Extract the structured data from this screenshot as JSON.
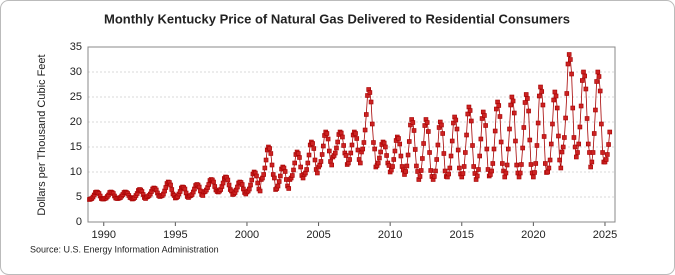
{
  "chart_data": {
    "type": "line",
    "title": "Monthly Kentucky Price of Natural Gas Delivered to Residential Consumers",
    "y_label": "Dollars per Thousand Cubic Feet",
    "source": "Source: U.S. Energy Information Administration",
    "color": "#a50000",
    "marker_color": "#cc2222",
    "grid": true,
    "xlim": [
      1988.9,
      2025.7
    ],
    "xticks": [
      1990,
      1995,
      2000,
      2005,
      2010,
      2015,
      2020,
      2025
    ],
    "ylim": [
      0,
      35
    ],
    "yticks": [
      0,
      5,
      10,
      15,
      20,
      25,
      30,
      35
    ],
    "x": [
      1989,
      1990,
      1991,
      1992,
      1993,
      1994,
      1995,
      1996,
      1997,
      1998,
      1999,
      2000,
      2001,
      2002,
      2003,
      2004,
      2005,
      2006,
      2007,
      2008,
      2009,
      2010,
      2011,
      2012,
      2013,
      2014,
      2015,
      2016,
      2017,
      2018,
      2019,
      2020,
      2021,
      2022,
      2023,
      2024,
      2025
    ],
    "values": [
      [
        4.5,
        4.6,
        4.7,
        5.0,
        5.4,
        5.9,
        6.0,
        5.9,
        5.7,
        5.2,
        4.7,
        4.6
      ],
      [
        4.6,
        4.7,
        4.8,
        5.1,
        5.4,
        5.9,
        6.0,
        5.9,
        5.7,
        5.2,
        4.8,
        4.7
      ],
      [
        4.7,
        4.8,
        4.9,
        5.2,
        5.5,
        5.9,
        6.0,
        5.9,
        5.7,
        5.3,
        4.9,
        4.8
      ],
      [
        4.6,
        4.7,
        4.9,
        5.3,
        5.7,
        6.3,
        6.5,
        6.4,
        6.1,
        5.5,
        4.9,
        4.7
      ],
      [
        5.0,
        5.1,
        5.3,
        5.6,
        6.1,
        6.6,
        6.8,
        6.7,
        6.4,
        5.8,
        5.3,
        5.1
      ],
      [
        5.2,
        5.3,
        5.6,
        6.2,
        6.9,
        7.7,
        8.0,
        7.9,
        7.4,
        6.5,
        5.6,
        5.3
      ],
      [
        4.8,
        4.9,
        5.1,
        5.6,
        6.1,
        6.8,
        7.0,
        6.9,
        6.6,
        5.8,
        5.1,
        4.9
      ],
      [
        5.2,
        5.3,
        5.5,
        6.0,
        6.6,
        7.3,
        7.5,
        7.4,
        7.0,
        6.2,
        5.5,
        5.3
      ],
      [
        6.0,
        6.1,
        6.4,
        6.9,
        7.5,
        8.3,
        8.5,
        8.4,
        8.0,
        7.1,
        6.4,
        6.1
      ],
      [
        6.0,
        6.2,
        6.5,
        7.1,
        7.8,
        8.7,
        9.0,
        8.9,
        8.4,
        7.4,
        6.5,
        6.2
      ],
      [
        5.5,
        5.6,
        5.9,
        6.4,
        7.0,
        7.8,
        8.0,
        7.9,
        7.5,
        6.6,
        5.9,
        5.6
      ],
      [
        6.0,
        6.2,
        6.6,
        7.4,
        8.4,
        9.6,
        10.0,
        9.8,
        9.2,
        7.8,
        6.6,
        6.2
      ],
      [
        8.5,
        8.8,
        9.5,
        10.8,
        12.4,
        14.4,
        15.0,
        14.7,
        13.7,
        11.4,
        9.5,
        8.8
      ],
      [
        6.5,
        6.7,
        7.2,
        8.1,
        9.2,
        10.6,
        11.0,
        10.8,
        10.1,
        8.5,
        7.2,
        6.7
      ],
      [
        8.5,
        8.8,
        9.3,
        10.4,
        11.8,
        13.5,
        14.0,
        13.7,
        12.9,
        11.0,
        9.3,
        8.8
      ],
      [
        9.5,
        9.8,
        10.5,
        11.8,
        13.4,
        15.4,
        16.0,
        15.7,
        14.7,
        12.4,
        10.5,
        9.8
      ],
      [
        11.0,
        11.4,
        12.1,
        13.5,
        15.2,
        17.3,
        18.0,
        17.7,
        16.6,
        14.2,
        12.1,
        11.4
      ],
      [
        13.0,
        13.3,
        13.8,
        14.8,
        16.0,
        17.5,
        18.0,
        17.8,
        17.0,
        15.3,
        13.8,
        13.3
      ],
      [
        11.5,
        11.8,
        12.5,
        13.8,
        15.4,
        17.4,
        18.0,
        17.7,
        16.7,
        14.4,
        12.5,
        11.8
      ],
      [
        14.0,
        14.6,
        15.9,
        18.4,
        21.5,
        25.3,
        26.5,
        25.9,
        24.0,
        19.6,
        15.9,
        14.6
      ],
      [
        11.0,
        11.3,
        11.8,
        12.8,
        14.0,
        15.5,
        16.0,
        15.8,
        15.0,
        13.3,
        11.8,
        11.3
      ],
      [
        10.0,
        10.4,
        11.1,
        12.5,
        14.2,
        16.3,
        17.0,
        16.7,
        15.6,
        13.2,
        11.1,
        10.4
      ],
      [
        9.5,
        10.1,
        11.2,
        13.4,
        16.1,
        19.4,
        20.5,
        19.9,
        18.3,
        14.5,
        11.2,
        10.1
      ],
      [
        8.5,
        9.1,
        10.3,
        12.7,
        15.7,
        19.3,
        20.5,
        19.9,
        18.1,
        13.9,
        10.3,
        9.1
      ],
      [
        8.5,
        9.1,
        10.2,
        12.5,
        15.4,
        18.9,
        20.0,
        19.4,
        17.7,
        13.7,
        10.2,
        9.1
      ],
      [
        9.0,
        9.6,
        10.8,
        13.2,
        16.2,
        19.8,
        21.0,
        20.4,
        18.6,
        14.4,
        10.8,
        9.6
      ],
      [
        9.0,
        9.7,
        11.1,
        13.9,
        17.4,
        21.6,
        23.0,
        22.3,
        20.2,
        15.3,
        11.1,
        9.7
      ],
      [
        8.5,
        9.2,
        10.5,
        13.2,
        16.6,
        20.7,
        22.0,
        21.3,
        19.3,
        14.6,
        10.5,
        9.2
      ],
      [
        9.5,
        10.2,
        11.7,
        14.6,
        18.2,
        22.6,
        24.0,
        23.3,
        21.1,
        16.0,
        11.7,
        10.2
      ],
      [
        9.0,
        9.8,
        11.4,
        14.6,
        18.6,
        23.4,
        25.0,
        24.2,
        21.8,
        16.2,
        11.4,
        9.8
      ],
      [
        9.0,
        9.8,
        11.5,
        14.8,
        18.9,
        23.9,
        25.5,
        24.7,
        22.2,
        16.4,
        11.5,
        9.8
      ],
      [
        9.0,
        9.9,
        11.7,
        15.3,
        19.8,
        25.2,
        27.0,
        26.1,
        23.4,
        17.1,
        11.7,
        9.9
      ],
      [
        10.0,
        10.8,
        12.4,
        15.6,
        19.6,
        24.4,
        26.0,
        25.2,
        22.8,
        17.2,
        12.4,
        10.8
      ],
      [
        14.0,
        15.0,
        16.9,
        20.8,
        25.7,
        31.6,
        33.5,
        32.5,
        29.6,
        22.8,
        16.9,
        15.0
      ],
      [
        13.0,
        13.9,
        15.6,
        19.0,
        23.2,
        28.3,
        30.0,
        29.2,
        26.6,
        20.7,
        15.6,
        13.9
      ],
      [
        11.0,
        12.0,
        13.9,
        17.7,
        22.4,
        28.1,
        30.0,
        29.1,
        26.2,
        19.6,
        13.9,
        12.0
      ],
      [
        12.0,
        12.5,
        13.5,
        15.5,
        18.0
      ]
    ]
  }
}
